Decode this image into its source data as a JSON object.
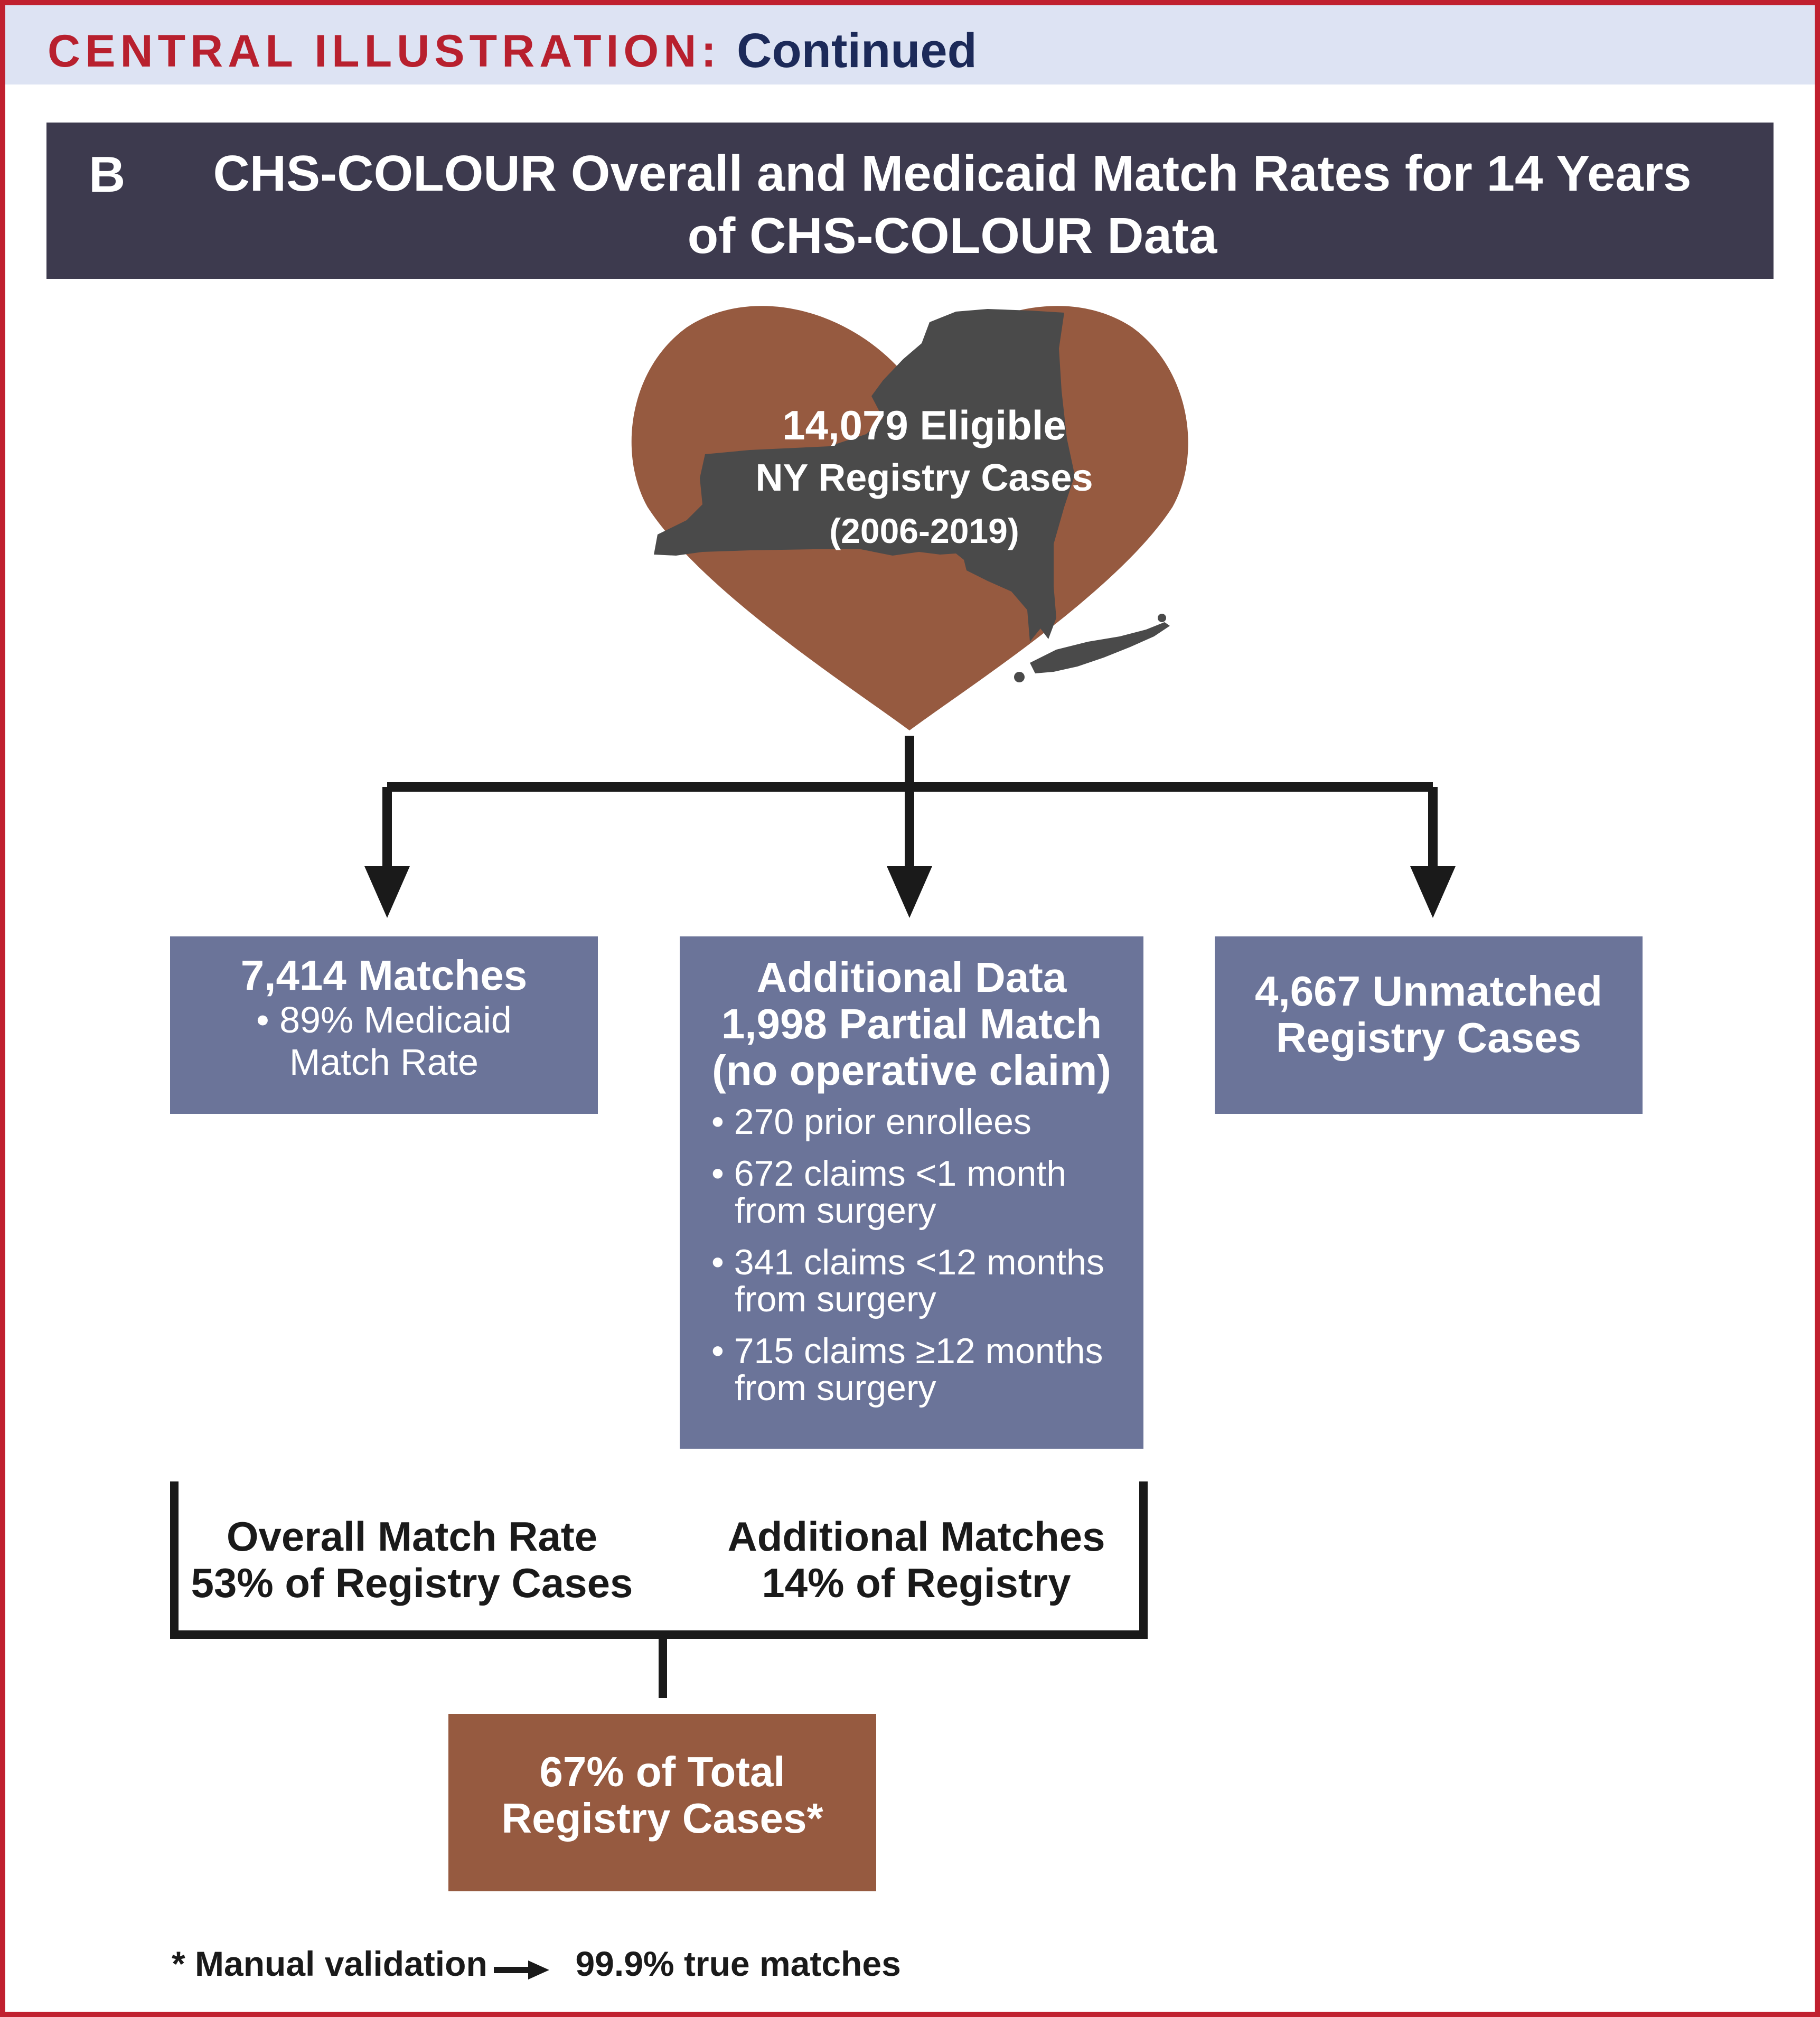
{
  "header": {
    "label": "CENTRAL ILLUSTRATION:",
    "continued": "Continued"
  },
  "title": {
    "panel_letter": "B",
    "text": "CHS-COLOUR Overall and Medicaid Match Rates for 14 Years of CHS-COLOUR Data"
  },
  "heart": {
    "line1": "14,079 Eligible",
    "line2": "NY Registry Cases",
    "line3": "(2006-2019)"
  },
  "left_box": {
    "title": "7,414 Matches",
    "line1": "• 89% Medicaid",
    "line2": "Match Rate"
  },
  "center_box": {
    "title1": "Additional Data",
    "title2": "1,998 Partial Match",
    "title3": "(no operative claim)",
    "bullets": [
      "• 270 prior enrollees",
      "• 672 claims <1 month from surgery",
      "• 341 claims <12 months from surgery",
      "• 715 claims ≥12 months from surgery"
    ]
  },
  "right_box": {
    "line1": "4,667 Unmatched",
    "line2": "Registry Cases"
  },
  "overall": {
    "line1": "Overall Match Rate",
    "line2": "53% of Registry Cases"
  },
  "additional": {
    "line1": "Additional Matches",
    "line2": "14% of Registry"
  },
  "total_box": {
    "line1": "67% of Total",
    "line2": "Registry Cases*"
  },
  "footnote": {
    "left": "* Manual validation",
    "right": "99.9% true matches"
  },
  "colors": {
    "frame": "#c0202f",
    "header_band": "#dde3f3",
    "title_bar": "#3d3a4e",
    "heart": "#965a40",
    "ny_state": "#4a4a4a",
    "box_blue": "#6b7499",
    "box_brown": "#965a40"
  }
}
